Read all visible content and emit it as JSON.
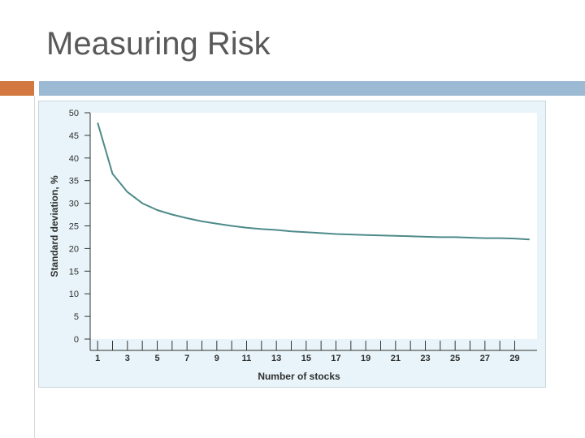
{
  "slide": {
    "title": "Measuring Risk"
  },
  "colors": {
    "title_text": "#595959",
    "accent_orange": "#d1773f",
    "accent_blue": "#9dbad4",
    "figure_background": "#e8f4f9",
    "plot_background": "#ffffff",
    "series_line": "#4e8a8a"
  },
  "chart_data": {
    "type": "line",
    "title": "",
    "xlabel": "Number of stocks",
    "ylabel": "Standard deviation, %",
    "xlim": [
      0.5,
      30.5
    ],
    "ylim": [
      0,
      50
    ],
    "x_tick_labels": [
      1,
      3,
      5,
      7,
      9,
      11,
      13,
      15,
      17,
      19,
      21,
      23,
      25,
      27,
      29
    ],
    "x_minor_ticks": [
      2,
      4,
      6,
      8,
      10,
      12,
      14,
      16,
      18,
      20,
      22,
      24,
      26,
      28
    ],
    "y_ticks": [
      0,
      5,
      10,
      15,
      20,
      25,
      30,
      35,
      40,
      45,
      50
    ],
    "grid": false,
    "legend": "none",
    "series": [
      {
        "x": [
          1,
          2,
          3,
          4,
          5,
          6,
          7,
          8,
          9,
          10,
          11,
          12,
          13,
          14,
          15,
          16,
          17,
          18,
          19,
          20,
          21,
          22,
          23,
          24,
          25,
          26,
          27,
          28,
          29,
          30
        ],
        "values": [
          47.8,
          36.5,
          32.5,
          30.0,
          28.5,
          27.5,
          26.7,
          26.0,
          25.5,
          25.0,
          24.6,
          24.3,
          24.1,
          23.8,
          23.6,
          23.4,
          23.2,
          23.1,
          23.0,
          22.9,
          22.8,
          22.7,
          22.6,
          22.5,
          22.5,
          22.4,
          22.3,
          22.3,
          22.2,
          22.0
        ]
      }
    ]
  }
}
